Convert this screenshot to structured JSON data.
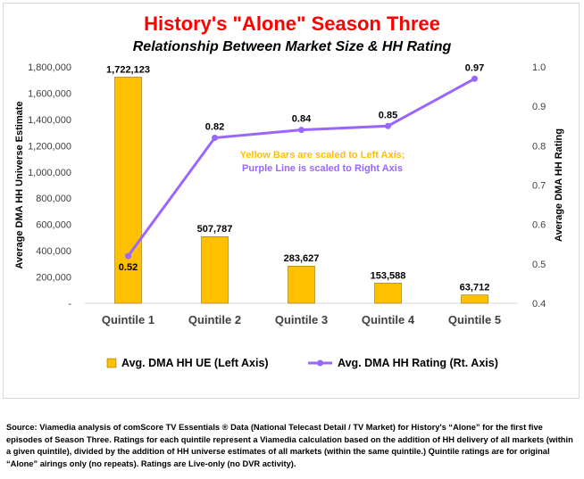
{
  "chart_data": {
    "type": "bar+line",
    "title": "History's \"Alone\" Season Three",
    "subtitle": "Relationship Between Market Size & HH Rating",
    "title_color": "#ff0000",
    "categories": [
      "Quintile 1",
      "Quintile 2",
      "Quintile 3",
      "Quintile 4",
      "Quintile 5"
    ],
    "bar_series": {
      "name": "Avg. DMA HH UE (Left Axis)",
      "values": [
        1722123,
        507787,
        283627,
        153588,
        63712
      ],
      "labels": [
        "1,722,123",
        "507,787",
        "283,627",
        "153,588",
        "63,712"
      ],
      "color": "#ffc000"
    },
    "line_series": {
      "name": "Avg. DMA HH Rating (Rt. Axis)",
      "values": [
        0.52,
        0.82,
        0.84,
        0.85,
        0.97
      ],
      "labels": [
        "0.52",
        "0.82",
        "0.84",
        "0.85",
        "0.97"
      ],
      "color": "#9966ff"
    },
    "left_axis": {
      "label": "Average DMA HH Universe Estimate",
      "ylim": [
        0,
        1800000
      ],
      "ticks": [
        0,
        200000,
        400000,
        600000,
        800000,
        1000000,
        1200000,
        1400000,
        1600000,
        1800000
      ],
      "tick_labels": [
        "-",
        "200,000",
        "400,000",
        "600,000",
        "800,000",
        "1,000,000",
        "1,200,000",
        "1,400,000",
        "1,600,000",
        "1,800,000"
      ]
    },
    "right_axis": {
      "label": "Average DMA HH Rating",
      "ylim": [
        0.4,
        1.0
      ],
      "ticks": [
        0.4,
        0.5,
        0.6,
        0.7,
        0.8,
        0.9,
        1.0
      ],
      "tick_labels": [
        "0.4",
        "0.5",
        "0.6",
        "0.7",
        "0.8",
        "0.9",
        "1.0"
      ]
    },
    "annotation": {
      "line1": "Yellow Bars are scaled to Left Axis;",
      "line2": "Purple Line is scaled to Right Axis",
      "line1_color": "#ffc000",
      "line2_color": "#9966ff"
    },
    "legend_position": "bottom",
    "grid": false
  },
  "source_note": "Source: Viamedia analysis of comScore TV Essentials ® Data (National Telecast Detail / TV Market) for History's “Alone” for the first five episodes of Season Three. Ratings for each quintile represent a Viamedia calculation based on the addition of HH delivery of all markets (within a given quintile), divided by the addition of HH universe estimates of all markets (within the same quintile.) Quintile ratings are for original “Alone” airings only (no repeats). Ratings are Live-only (no DVR activity)."
}
